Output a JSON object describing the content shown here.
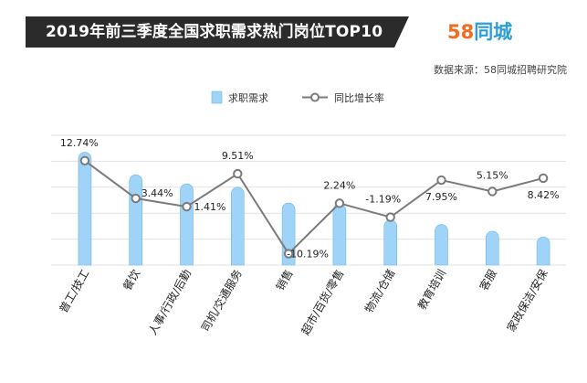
{
  "header": {
    "title": "2019年前三季度全国求职需求热门岗位TOP10",
    "title_bg": "#2b2b2b",
    "logo_number": "58",
    "logo_text": "同城",
    "logo_number_color": "#f26b21",
    "logo_text_color": "#2b9ed9"
  },
  "source": "数据来源：58同城招聘研究院",
  "colors": {
    "bar": "#9fd3f7",
    "bar_stroke": "#6cb8ea",
    "line": "#7a7a7a",
    "marker_fill": "#ffffff",
    "grid": "#e2e2e2"
  },
  "chart_data": {
    "type": "bar",
    "categories": [
      "普工/技工",
      "餐饮",
      "人事/行政/后勤",
      "司机/交通服务",
      "销售",
      "超市/百货/零售",
      "物流/仓储",
      "教育培训",
      "客服",
      "家政保洁/安保"
    ],
    "series": [
      {
        "name": "求职需求",
        "type": "bar",
        "values": [
          100,
          80,
          72,
          69,
          55,
          54,
          40,
          36,
          30,
          25
        ]
      },
      {
        "name": "同比增长率",
        "type": "line",
        "axis": "secondary",
        "values": [
          12.74,
          3.44,
          1.41,
          9.51,
          -10.19,
          2.24,
          -1.19,
          7.95,
          5.15,
          8.42
        ]
      }
    ],
    "data_labels": [
      "12.74%",
      "3.44%",
      "1.41%",
      "9.51%",
      "-10.19%",
      "2.24%",
      "-1.19%",
      "7.95%",
      "5.15%",
      "8.42%"
    ],
    "legend_position": "top-left",
    "grid": true,
    "ylim": [
      0,
      115
    ],
    "y2lim": [
      -13,
      19
    ]
  }
}
